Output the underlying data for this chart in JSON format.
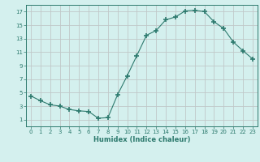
{
  "x": [
    0,
    1,
    2,
    3,
    4,
    5,
    6,
    7,
    8,
    9,
    10,
    11,
    12,
    13,
    14,
    15,
    16,
    17,
    18,
    19,
    20,
    21,
    22,
    23
  ],
  "y": [
    4.5,
    3.8,
    3.2,
    3.0,
    2.5,
    2.3,
    2.2,
    1.2,
    1.3,
    4.7,
    7.5,
    10.5,
    13.5,
    14.2,
    15.8,
    16.2,
    17.1,
    17.2,
    17.0,
    15.5,
    14.5,
    12.5,
    11.2,
    10.0
  ],
  "xlim": [
    -0.5,
    23.5
  ],
  "ylim": [
    0,
    18
  ],
  "xticks": [
    0,
    1,
    2,
    3,
    4,
    5,
    6,
    7,
    8,
    9,
    10,
    11,
    12,
    13,
    14,
    15,
    16,
    17,
    18,
    19,
    20,
    21,
    22,
    23
  ],
  "yticks": [
    1,
    3,
    5,
    7,
    9,
    11,
    13,
    15,
    17
  ],
  "xlabel": "Humidex (Indice chaleur)",
  "line_color": "#2d7a6e",
  "marker": "+",
  "bg_color": "#d4f0ee",
  "grid_color": "#c0c8c8",
  "title": ""
}
